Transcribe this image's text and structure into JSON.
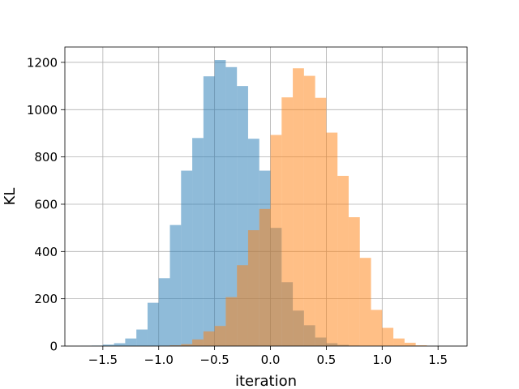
{
  "chart_data": {
    "type": "histogram",
    "title": "",
    "xlabel": "iteration",
    "ylabel": "KL",
    "xlim": [
      -1.84,
      1.76
    ],
    "ylim": [
      0,
      1265
    ],
    "xticks": [
      -1.5,
      -1.0,
      -0.5,
      0.0,
      0.5,
      1.0,
      1.5
    ],
    "xtick_labels": [
      "−1.5",
      "−1.0",
      "−0.5",
      "0.0",
      "0.5",
      "1.0",
      "1.5"
    ],
    "yticks": [
      0,
      200,
      400,
      600,
      800,
      1000,
      1200
    ],
    "ytick_labels": [
      "0",
      "200",
      "400",
      "600",
      "800",
      "1000",
      "1200"
    ],
    "grid": true,
    "series": [
      {
        "color": "#1f77b4",
        "opacity": 0.5,
        "bins": [
          [
            -1.8,
            -1.7,
            0
          ],
          [
            -1.7,
            -1.6,
            1
          ],
          [
            -1.6,
            -1.5,
            2
          ],
          [
            -1.5,
            -1.4,
            6
          ],
          [
            -1.4,
            -1.3,
            12
          ],
          [
            -1.3,
            -1.2,
            32
          ],
          [
            -1.2,
            -1.1,
            70
          ],
          [
            -1.1,
            -1.0,
            183
          ],
          [
            -1.0,
            -0.9,
            287
          ],
          [
            -0.9,
            -0.8,
            512
          ],
          [
            -0.8,
            -0.7,
            742
          ],
          [
            -0.7,
            -0.6,
            880
          ],
          [
            -0.6,
            -0.5,
            1141
          ],
          [
            -0.5,
            -0.4,
            1210
          ],
          [
            -0.4,
            -0.3,
            1180
          ],
          [
            -0.3,
            -0.2,
            1100
          ],
          [
            -0.2,
            -0.1,
            877
          ],
          [
            -0.1,
            0.0,
            742
          ],
          [
            0.0,
            0.1,
            500
          ],
          [
            0.1,
            0.2,
            270
          ],
          [
            0.2,
            0.3,
            150
          ],
          [
            0.3,
            0.4,
            88
          ],
          [
            0.4,
            0.5,
            36
          ],
          [
            0.5,
            0.6,
            12
          ],
          [
            0.6,
            0.7,
            5
          ],
          [
            0.7,
            0.8,
            2
          ]
        ]
      },
      {
        "color": "#ff7f0e",
        "opacity": 0.5,
        "bins": [
          [
            -1.0,
            -0.9,
            1
          ],
          [
            -0.9,
            -0.8,
            3
          ],
          [
            -0.8,
            -0.7,
            8
          ],
          [
            -0.7,
            -0.6,
            28
          ],
          [
            -0.6,
            -0.5,
            62
          ],
          [
            -0.5,
            -0.4,
            85
          ],
          [
            -0.4,
            -0.3,
            207
          ],
          [
            -0.3,
            -0.2,
            342
          ],
          [
            -0.2,
            -0.1,
            490
          ],
          [
            -0.1,
            0.0,
            580
          ],
          [
            0.0,
            0.1,
            893
          ],
          [
            0.1,
            0.2,
            1052
          ],
          [
            0.2,
            0.3,
            1175
          ],
          [
            0.3,
            0.4,
            1143
          ],
          [
            0.4,
            0.5,
            1050
          ],
          [
            0.5,
            0.6,
            903
          ],
          [
            0.6,
            0.7,
            720
          ],
          [
            0.7,
            0.8,
            545
          ],
          [
            0.8,
            0.9,
            373
          ],
          [
            0.9,
            1.0,
            153
          ],
          [
            1.0,
            1.1,
            77
          ],
          [
            1.1,
            1.2,
            32
          ],
          [
            1.2,
            1.3,
            14
          ],
          [
            1.3,
            1.4,
            3
          ]
        ]
      }
    ]
  }
}
